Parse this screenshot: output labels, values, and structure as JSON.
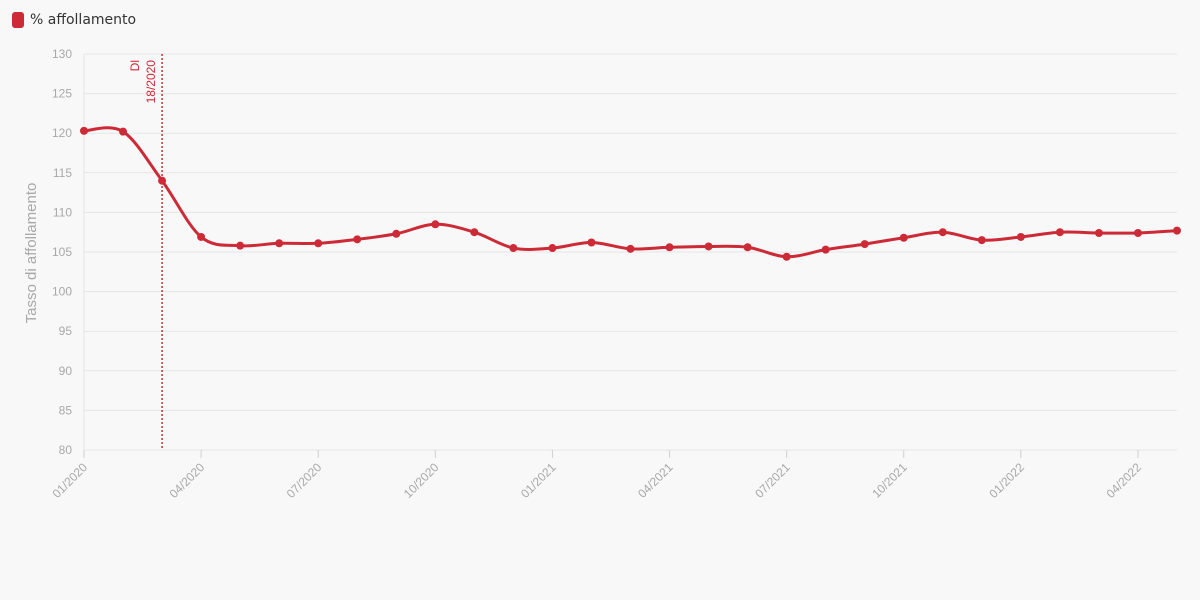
{
  "chart_data": {
    "type": "line",
    "legend": {
      "placement": "top-left"
    },
    "ylabel": "Tasso di affollamento",
    "ylim": [
      80,
      130
    ],
    "yticks": [
      80,
      85,
      90,
      95,
      100,
      105,
      110,
      115,
      120,
      125,
      130
    ],
    "grid": true,
    "xlim": [
      "2020-01",
      "2022-05"
    ],
    "xticks": [
      {
        "date": "2020-01",
        "label": "01/2020"
      },
      {
        "date": "2020-04",
        "label": "04/2020"
      },
      {
        "date": "2020-07",
        "label": "07/2020"
      },
      {
        "date": "2020-10",
        "label": "10/2020"
      },
      {
        "date": "2021-01",
        "label": "01/2021"
      },
      {
        "date": "2021-04",
        "label": "04/2021"
      },
      {
        "date": "2021-07",
        "label": "07/2021"
      },
      {
        "date": "2021-10",
        "label": "10/2021"
      },
      {
        "date": "2022-01",
        "label": "01/2022"
      },
      {
        "date": "2022-04",
        "label": "04/2022"
      }
    ],
    "series": [
      {
        "name": "% affollamento",
        "color": "#cc2a36",
        "points": [
          {
            "x": "2020-01",
            "y": 120.3
          },
          {
            "x": "2020-02",
            "y": 120.2
          },
          {
            "x": "2020-03",
            "y": 114.0
          },
          {
            "x": "2020-04",
            "y": 106.9
          },
          {
            "x": "2020-05",
            "y": 105.8
          },
          {
            "x": "2020-06",
            "y": 106.1
          },
          {
            "x": "2020-07",
            "y": 106.1
          },
          {
            "x": "2020-08",
            "y": 106.6
          },
          {
            "x": "2020-09",
            "y": 107.3
          },
          {
            "x": "2020-10",
            "y": 108.5
          },
          {
            "x": "2020-11",
            "y": 107.5
          },
          {
            "x": "2020-12",
            "y": 105.5
          },
          {
            "x": "2021-01",
            "y": 105.5
          },
          {
            "x": "2021-02",
            "y": 106.2
          },
          {
            "x": "2021-03",
            "y": 105.4
          },
          {
            "x": "2021-04",
            "y": 105.6
          },
          {
            "x": "2021-05",
            "y": 105.7
          },
          {
            "x": "2021-06",
            "y": 105.6
          },
          {
            "x": "2021-07",
            "y": 104.4
          },
          {
            "x": "2021-08",
            "y": 105.3
          },
          {
            "x": "2021-09",
            "y": 106.0
          },
          {
            "x": "2021-10",
            "y": 106.8
          },
          {
            "x": "2021-11",
            "y": 107.5
          },
          {
            "x": "2021-12",
            "y": 106.5
          },
          {
            "x": "2022-01",
            "y": 106.9
          },
          {
            "x": "2022-02",
            "y": 107.5
          },
          {
            "x": "2022-03",
            "y": 107.4
          },
          {
            "x": "2022-04",
            "y": 107.4
          },
          {
            "x": "2022-05",
            "y": 107.7
          }
        ]
      }
    ],
    "annotations": [
      {
        "type": "vline",
        "x": "2020-03",
        "lines": [
          "Dl",
          "18/2020"
        ],
        "color": "#cc2a36"
      }
    ]
  }
}
